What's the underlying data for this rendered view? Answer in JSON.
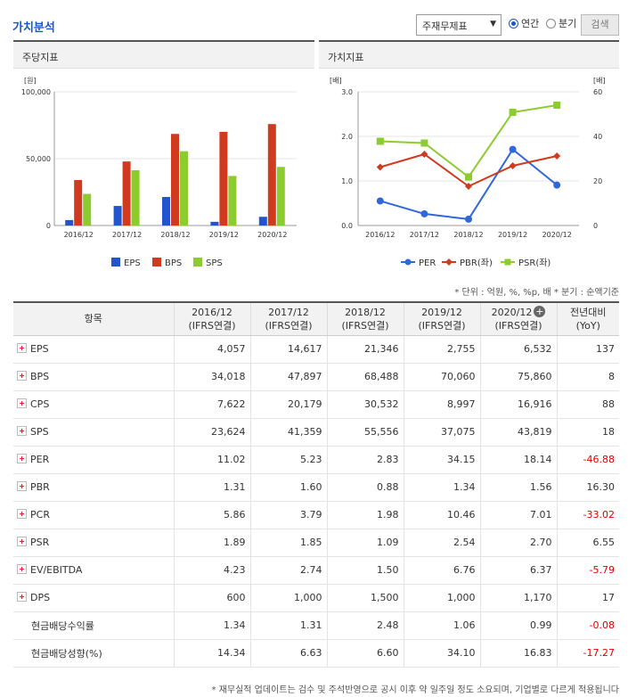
{
  "page": {
    "title": "가치분석",
    "select_value": "주재무제표",
    "radio_annual": "연간",
    "radio_quarter": "분기",
    "search_label": "검색"
  },
  "left_panel": {
    "title": "주당지표"
  },
  "right_panel": {
    "title": "가치지표"
  },
  "chart_data": [
    {
      "type": "bar",
      "title": "주당지표",
      "unit_label": "[원]",
      "categories": [
        "2016/12",
        "2017/12",
        "2018/12",
        "2019/12",
        "2020/12"
      ],
      "series": [
        {
          "name": "EPS",
          "color": "#2255cc",
          "values": [
            4057,
            14617,
            21346,
            2755,
            6532
          ]
        },
        {
          "name": "BPS",
          "color": "#d03a1e",
          "values": [
            34018,
            47897,
            68488,
            70060,
            75860
          ]
        },
        {
          "name": "SPS",
          "color": "#8ccc2e",
          "values": [
            23624,
            41359,
            55556,
            37075,
            43819
          ]
        }
      ],
      "ylim": [
        0,
        100000
      ],
      "yticks": [
        "0",
        "50,000",
        "100,000"
      ],
      "legend": "bottom"
    },
    {
      "type": "line",
      "title": "가치지표",
      "left_unit_label": "[배]",
      "right_unit_label": "[배]",
      "categories": [
        "2016/12",
        "2017/12",
        "2018/12",
        "2019/12",
        "2020/12"
      ],
      "series": [
        {
          "name": "PER",
          "axis": "right",
          "color": "#2f68d8",
          "marker": "circle",
          "values": [
            11.02,
            5.23,
            2.83,
            34.15,
            18.14
          ]
        },
        {
          "name": "PBR(좌)",
          "axis": "left",
          "color": "#d03a1e",
          "marker": "diamond",
          "values": [
            1.31,
            1.6,
            0.88,
            1.34,
            1.56
          ]
        },
        {
          "name": "PSR(좌)",
          "axis": "left",
          "color": "#8ccc2e",
          "marker": "square",
          "values": [
            1.89,
            1.85,
            1.09,
            2.54,
            2.7
          ]
        }
      ],
      "ylim_left": [
        0,
        3
      ],
      "yticks_left": [
        "0.0",
        "1.0",
        "2.0",
        "3.0"
      ],
      "ylim_right": [
        0,
        60
      ],
      "yticks_right": [
        "0",
        "20",
        "40",
        "60"
      ],
      "legend": "bottom"
    }
  ],
  "units_note": "* 단위 : 억원, %, %p, 배   * 분기 : 순액기준",
  "table": {
    "header_item": "항목",
    "header_years": [
      "2016/12",
      "2017/12",
      "2018/12",
      "2019/12",
      "2020/12"
    ],
    "header_basis": "(IFRS연결)",
    "header_yoy_1": "전년대비",
    "header_yoy_2": "(YoY)",
    "rows": [
      {
        "label": "EPS",
        "values": [
          "4,057",
          "14,617",
          "21,346",
          "2,755",
          "6,532"
        ],
        "yoy": "137",
        "neg": false,
        "expand": true
      },
      {
        "label": "BPS",
        "values": [
          "34,018",
          "47,897",
          "68,488",
          "70,060",
          "75,860"
        ],
        "yoy": "8",
        "neg": false,
        "expand": true
      },
      {
        "label": "CPS",
        "values": [
          "7,622",
          "20,179",
          "30,532",
          "8,997",
          "16,916"
        ],
        "yoy": "88",
        "neg": false,
        "expand": true
      },
      {
        "label": "SPS",
        "values": [
          "23,624",
          "41,359",
          "55,556",
          "37,075",
          "43,819"
        ],
        "yoy": "18",
        "neg": false,
        "expand": true
      },
      {
        "label": "PER",
        "values": [
          "11.02",
          "5.23",
          "2.83",
          "34.15",
          "18.14"
        ],
        "yoy": "-46.88",
        "neg": true,
        "expand": true
      },
      {
        "label": "PBR",
        "values": [
          "1.31",
          "1.60",
          "0.88",
          "1.34",
          "1.56"
        ],
        "yoy": "16.30",
        "neg": false,
        "expand": true
      },
      {
        "label": "PCR",
        "values": [
          "5.86",
          "3.79",
          "1.98",
          "10.46",
          "7.01"
        ],
        "yoy": "-33.02",
        "neg": true,
        "expand": true
      },
      {
        "label": "PSR",
        "values": [
          "1.89",
          "1.85",
          "1.09",
          "2.54",
          "2.70"
        ],
        "yoy": "6.55",
        "neg": false,
        "expand": true
      },
      {
        "label": "EV/EBITDA",
        "values": [
          "4.23",
          "2.74",
          "1.50",
          "6.76",
          "6.37"
        ],
        "yoy": "-5.79",
        "neg": true,
        "expand": true
      },
      {
        "label": "DPS",
        "values": [
          "600",
          "1,000",
          "1,500",
          "1,000",
          "1,170"
        ],
        "yoy": "17",
        "neg": false,
        "expand": true
      },
      {
        "label": "현금배당수익률",
        "values": [
          "1.34",
          "1.31",
          "2.48",
          "1.06",
          "0.99"
        ],
        "yoy": "-0.08",
        "neg": true,
        "expand": false
      },
      {
        "label": "현금배당성향(%)",
        "values": [
          "14.34",
          "6.63",
          "6.60",
          "34.10",
          "16.83"
        ],
        "yoy": "-17.27",
        "neg": true,
        "expand": false
      }
    ]
  },
  "footnote": "* 재무실적 업데이트는 검수 및 주석반영으로 공시 이후 약 일주일 정도 소요되며, 기업별로 다르게 적용됩니다"
}
